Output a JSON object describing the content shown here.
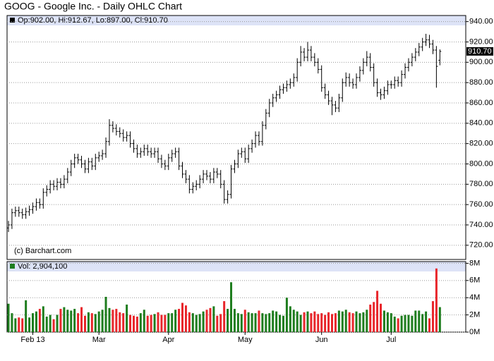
{
  "chart_data": [
    {
      "type": "ohlc",
      "title": "GOOG - Google Inc. - Daily OHLC Chart",
      "legend_text": "Op:902.00, Hi:912.67, Lo:897.00, Cl:910.70",
      "annotation": "(c) Barchart.com",
      "last_label": "910.70",
      "color": "#000000",
      "grid": true,
      "ylim": [
        706,
        946
      ],
      "yticks": [
        {
          "value": 720,
          "label": "720.00"
        },
        {
          "value": 740,
          "label": "740.00"
        },
        {
          "value": 760,
          "label": "760.00"
        },
        {
          "value": 780,
          "label": "780.00"
        },
        {
          "value": 800,
          "label": "800.00"
        },
        {
          "value": 820,
          "label": "820.00"
        },
        {
          "value": 840,
          "label": "840.00"
        },
        {
          "value": 860,
          "label": "860.00"
        },
        {
          "value": 880,
          "label": "880.00"
        },
        {
          "value": 900,
          "label": "900.00"
        },
        {
          "value": 920,
          "label": "920.00"
        },
        {
          "value": 940,
          "label": "940.00"
        }
      ],
      "open": [
        737,
        740,
        752,
        754,
        752,
        750,
        753,
        755,
        758,
        762,
        760,
        772,
        775,
        780,
        778,
        782,
        780,
        785,
        792,
        800,
        806,
        804,
        800,
        795,
        802,
        798,
        806,
        808,
        810,
        822,
        838,
        835,
        832,
        830,
        826,
        828,
        820,
        815,
        810,
        812,
        815,
        812,
        810,
        812,
        805,
        800,
        798,
        806,
        810,
        812,
        798,
        790,
        785,
        775,
        778,
        780,
        785,
        790,
        788,
        785,
        792,
        790,
        780,
        765,
        770,
        795,
        800,
        810,
        812,
        805,
        815,
        820,
        828,
        822,
        838,
        850,
        860,
        865,
        868,
        873,
        875,
        878,
        880,
        885,
        900,
        910,
        905,
        912,
        905,
        900,
        893,
        875,
        868,
        862,
        858,
        855,
        865,
        880,
        885,
        880,
        878,
        885,
        892,
        900,
        905,
        895,
        880,
        870,
        868,
        872,
        878,
        878,
        882,
        880,
        888,
        895,
        900,
        905,
        910,
        915,
        920,
        922,
        918,
        912,
        902
      ],
      "high": [
        744,
        756,
        758,
        758,
        756,
        757,
        759,
        762,
        766,
        766,
        776,
        779,
        784,
        784,
        786,
        786,
        789,
        796,
        804,
        810,
        810,
        808,
        804,
        806,
        806,
        810,
        812,
        814,
        826,
        844,
        842,
        839,
        836,
        834,
        832,
        832,
        824,
        819,
        816,
        819,
        819,
        816,
        816,
        816,
        809,
        804,
        810,
        814,
        816,
        816,
        802,
        794,
        789,
        782,
        784,
        789,
        794,
        794,
        792,
        796,
        796,
        794,
        784,
        774,
        799,
        804,
        814,
        816,
        816,
        819,
        824,
        832,
        832,
        842,
        854,
        864,
        869,
        872,
        877,
        879,
        882,
        884,
        889,
        904,
        916,
        914,
        920,
        916,
        909,
        904,
        897,
        879,
        872,
        866,
        862,
        869,
        884,
        890,
        889,
        884,
        889,
        896,
        904,
        911,
        909,
        899,
        884,
        874,
        876,
        882,
        882,
        886,
        886,
        892,
        899,
        904,
        909,
        914,
        919,
        924,
        928,
        927,
        922,
        916,
        912.67
      ],
      "low": [
        733,
        736,
        748,
        748,
        746,
        746,
        749,
        751,
        754,
        756,
        756,
        768,
        771,
        774,
        774,
        776,
        776,
        781,
        788,
        796,
        800,
        796,
        791,
        791,
        794,
        794,
        802,
        804,
        806,
        818,
        831,
        828,
        826,
        822,
        822,
        816,
        811,
        806,
        806,
        808,
        808,
        806,
        806,
        801,
        796,
        794,
        794,
        802,
        806,
        794,
        786,
        781,
        771,
        771,
        774,
        776,
        781,
        784,
        781,
        781,
        786,
        776,
        761,
        761,
        766,
        791,
        796,
        806,
        801,
        801,
        811,
        816,
        818,
        818,
        834,
        846,
        856,
        861,
        864,
        869,
        871,
        874,
        876,
        881,
        896,
        901,
        901,
        901,
        896,
        889,
        871,
        864,
        858,
        848,
        851,
        851,
        861,
        876,
        876,
        874,
        874,
        881,
        888,
        896,
        891,
        876,
        866,
        863,
        864,
        868,
        874,
        874,
        876,
        876,
        884,
        891,
        896,
        901,
        906,
        911,
        916,
        914,
        908,
        875,
        897
      ],
      "close": [
        740,
        752,
        754,
        752,
        750,
        753,
        755,
        758,
        762,
        760,
        772,
        775,
        780,
        778,
        782,
        780,
        785,
        792,
        800,
        806,
        804,
        800,
        795,
        802,
        798,
        806,
        808,
        810,
        822,
        838,
        835,
        832,
        830,
        826,
        828,
        820,
        815,
        810,
        812,
        815,
        812,
        810,
        812,
        805,
        800,
        798,
        806,
        810,
        812,
        798,
        790,
        785,
        775,
        778,
        780,
        785,
        790,
        788,
        785,
        792,
        790,
        780,
        765,
        770,
        795,
        800,
        810,
        812,
        805,
        815,
        820,
        828,
        822,
        838,
        850,
        860,
        865,
        868,
        873,
        875,
        878,
        880,
        885,
        900,
        910,
        905,
        912,
        905,
        900,
        893,
        875,
        868,
        862,
        858,
        855,
        865,
        880,
        885,
        880,
        878,
        885,
        892,
        900,
        905,
        895,
        880,
        870,
        868,
        872,
        878,
        878,
        882,
        880,
        888,
        895,
        900,
        905,
        910,
        915,
        920,
        922,
        918,
        912,
        896,
        910.7
      ]
    },
    {
      "type": "bar",
      "legend_text": "Vol: 2,904,100",
      "up_color": "#1e7d1e",
      "down_color": "#e8262b",
      "grid": true,
      "ylim": [
        0,
        8200000
      ],
      "yticks": [
        {
          "value": 0,
          "label": "0M"
        },
        {
          "value": 2000000,
          "label": "2M"
        },
        {
          "value": 4000000,
          "label": "4M"
        },
        {
          "value": 6000000,
          "label": "6M"
        },
        {
          "value": 8000000,
          "label": "8M"
        }
      ],
      "categories": [
        null,
        null,
        null,
        null,
        null,
        null,
        null,
        "Feb 13",
        null,
        null,
        null,
        null,
        null,
        null,
        null,
        null,
        null,
        null,
        null,
        null,
        null,
        null,
        null,
        null,
        null,
        null,
        "Mar",
        null,
        null,
        null,
        null,
        null,
        null,
        null,
        null,
        null,
        null,
        null,
        null,
        null,
        null,
        null,
        null,
        null,
        null,
        null,
        "Apr",
        null,
        null,
        null,
        null,
        null,
        null,
        null,
        null,
        null,
        null,
        null,
        null,
        null,
        null,
        null,
        null,
        null,
        null,
        null,
        null,
        null,
        "May",
        null,
        null,
        null,
        null,
        null,
        null,
        null,
        null,
        null,
        null,
        null,
        null,
        null,
        null,
        null,
        null,
        null,
        null,
        null,
        null,
        null,
        "Jun",
        null,
        null,
        null,
        null,
        null,
        null,
        null,
        null,
        null,
        null,
        null,
        null,
        null,
        null,
        null,
        null,
        null,
        null,
        null,
        "Jul",
        null,
        null,
        null,
        null,
        null,
        null,
        null,
        null,
        null,
        null,
        null,
        null,
        null,
        null
      ],
      "values": [
        3300000,
        2200000,
        1600000,
        1700000,
        1600000,
        3700000,
        1700000,
        2200000,
        2400000,
        2700000,
        3000000,
        1800000,
        2000000,
        1500000,
        2000000,
        2700000,
        2900000,
        2600000,
        2500000,
        2700000,
        2200000,
        2900000,
        1900000,
        2300000,
        2200000,
        2100000,
        2400000,
        2600000,
        4100000,
        2800000,
        2600000,
        2700000,
        2300000,
        2200000,
        3200000,
        2000000,
        1900000,
        1800000,
        2200000,
        2600000,
        1900000,
        2000000,
        2100000,
        2300000,
        2000000,
        2000000,
        2200000,
        2200000,
        2600000,
        2700000,
        3400000,
        3100000,
        2300000,
        2200000,
        2000000,
        2100000,
        2400000,
        2600000,
        2800000,
        3000000,
        1900000,
        2100000,
        3600000,
        2700000,
        5800000,
        2700000,
        2200000,
        2100000,
        2600000,
        2300000,
        2200000,
        2200000,
        2500000,
        2200000,
        2100000,
        2200000,
        2500000,
        2400000,
        2000000,
        1900000,
        4000000,
        3000000,
        2600000,
        2400000,
        2000000,
        2300000,
        2400000,
        2200000,
        2400000,
        2100000,
        2200000,
        2000000,
        2300000,
        2100000,
        2200000,
        2500000,
        2400000,
        2600000,
        2300000,
        2200000,
        2400000,
        2200000,
        2300000,
        2600000,
        3200000,
        3500000,
        4800000,
        3300000,
        2500000,
        2300000,
        2200000,
        1800000,
        1600000,
        1900000,
        2000000,
        2000000,
        1900000,
        2500000,
        2500000,
        2100000,
        2400000,
        1600000,
        3600000,
        7400000,
        2904100
      ]
    }
  ]
}
